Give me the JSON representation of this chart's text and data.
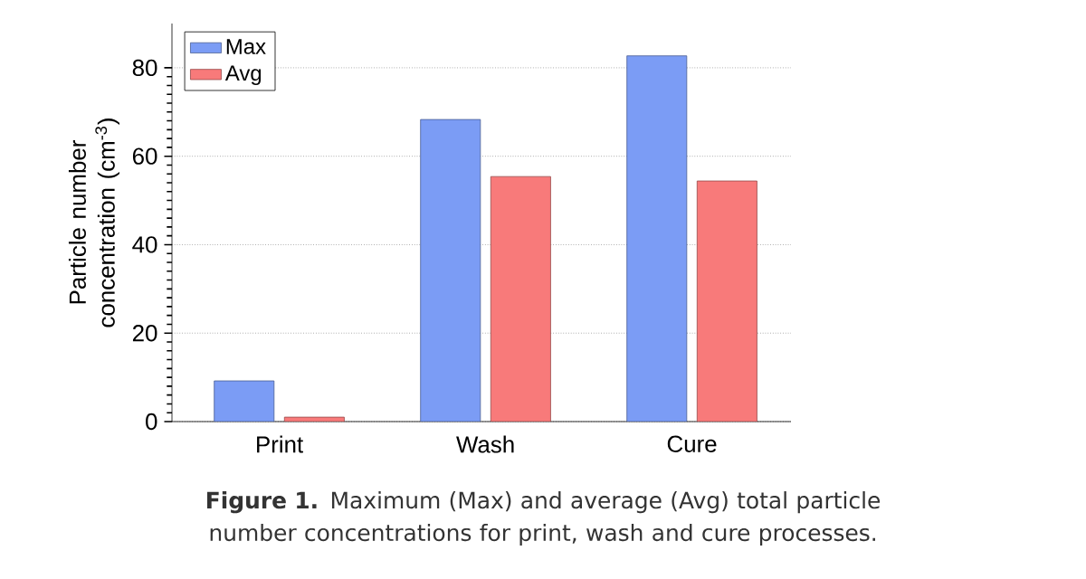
{
  "chart_data": {
    "type": "bar",
    "ylabel": "Particle number concentration (cm$^{-3}$)",
    "categories": [
      "Print",
      "Wash",
      "Cure"
    ],
    "series": [
      {
        "name": "Max",
        "color": "#7b9cf5",
        "values": [
          9.2,
          68.3,
          82.7
        ]
      },
      {
        "name": "Avg",
        "color": "#f87a7a",
        "values": [
          1.0,
          55.4,
          54.4
        ]
      }
    ],
    "ylim": [
      0,
      90
    ],
    "yticks": [
      0,
      20,
      40,
      60,
      80
    ],
    "grid": "y",
    "legend": "top left",
    "annotations": [
      "**Figure 1.** Maximum (Max) and average (Avg) total particle number concentrations for print, wash and cure processes."
    ]
  }
}
